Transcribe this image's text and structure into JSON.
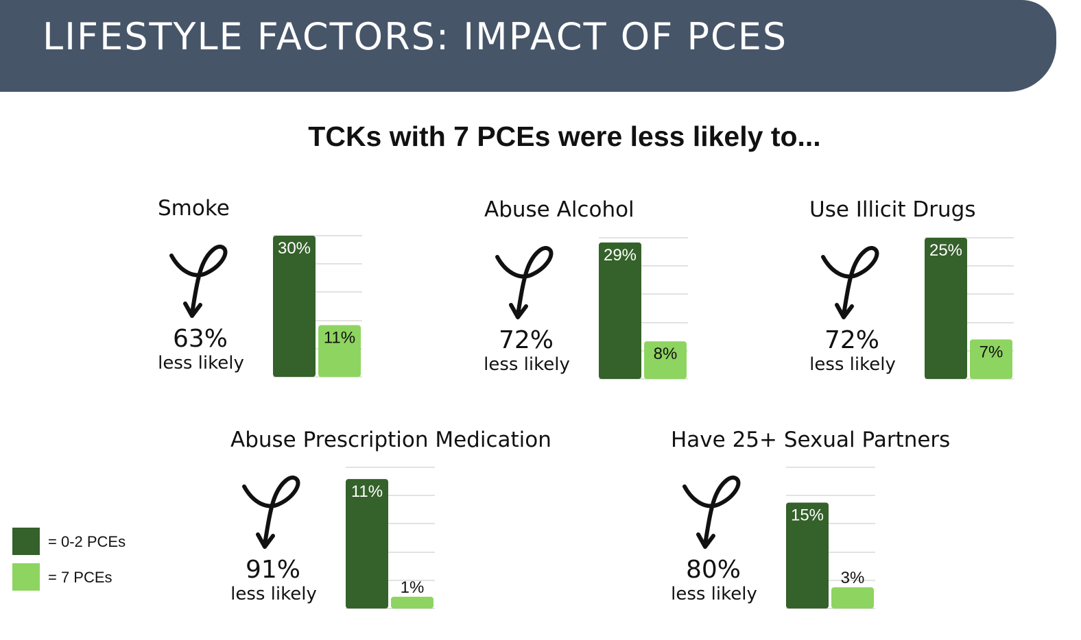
{
  "header": {
    "title": "LIFESTYLE FACTORS: IMPACT OF PCES"
  },
  "subtitle": "TCKs with 7 PCEs were less likely to...",
  "less_likely_label": "less likely",
  "colors": {
    "header_bg": "#475569",
    "dark_green": "#35612a",
    "light_green": "#8ed460",
    "grid": "#d9d9d9"
  },
  "legend": {
    "items": [
      {
        "label": "= 0-2 PCEs",
        "color": "#35612a"
      },
      {
        "label": "= 7 PCEs",
        "color": "#8ed460"
      }
    ]
  },
  "chart_data": [
    {
      "type": "bar",
      "title": "Smoke",
      "categories": [
        "0-2 PCEs",
        "7 PCEs"
      ],
      "values": [
        30,
        11
      ],
      "labels": [
        "30%",
        "11%"
      ],
      "reduction": "63%",
      "ylim": [
        0,
        30
      ],
      "grid": true
    },
    {
      "type": "bar",
      "title": "Abuse Alcohol",
      "categories": [
        "0-2 PCEs",
        "7 PCEs"
      ],
      "values": [
        29,
        8
      ],
      "labels": [
        "29%",
        "8%"
      ],
      "reduction": "72%",
      "ylim": [
        0,
        30
      ],
      "grid": true
    },
    {
      "type": "bar",
      "title": "Use Illicit Drugs",
      "categories": [
        "0-2 PCEs",
        "7 PCEs"
      ],
      "values": [
        25,
        7
      ],
      "labels": [
        "25%",
        "7%"
      ],
      "reduction": "72%",
      "ylim": [
        0,
        25
      ],
      "grid": true
    },
    {
      "type": "bar",
      "title": "Abuse Prescription Medication",
      "categories": [
        "0-2 PCEs",
        "7 PCEs"
      ],
      "values": [
        11,
        1
      ],
      "labels": [
        "11%",
        "1%"
      ],
      "reduction": "91%",
      "ylim": [
        0,
        12
      ],
      "grid": true
    },
    {
      "type": "bar",
      "title": "Have 25+ Sexual Partners",
      "categories": [
        "0-2 PCEs",
        "7 PCEs"
      ],
      "values": [
        15,
        3
      ],
      "labels": [
        "15%",
        "3%"
      ],
      "reduction": "80%",
      "ylim": [
        0,
        20
      ],
      "grid": true
    }
  ]
}
